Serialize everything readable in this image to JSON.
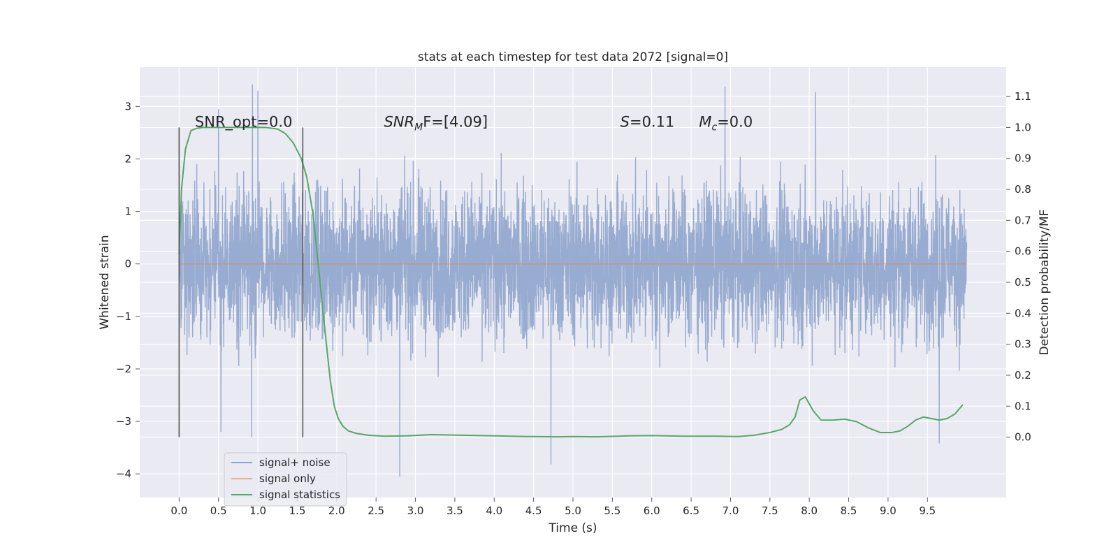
{
  "chart_data": {
    "type": "line",
    "title": "stats at each timestep for test data 2072 [signal=0]",
    "xlabel": "Time (s)",
    "ylabel_left": "Whitened strain",
    "ylabel_right": "Detection probability/MF",
    "xlim": [
      -0.5,
      10.5
    ],
    "ylim_left": [
      -4.45,
      3.75
    ],
    "ylim_right": [
      -0.195,
      1.195
    ],
    "x_ticks": [
      0.0,
      0.5,
      1.0,
      1.5,
      2.0,
      2.5,
      3.0,
      3.5,
      4.0,
      4.5,
      5.0,
      5.5,
      6.0,
      6.5,
      7.0,
      7.5,
      8.0,
      8.5,
      9.0,
      9.5
    ],
    "x_tick_labels": [
      "0.0",
      "0.5",
      "1.0",
      "1.5",
      "2.0",
      "2.5",
      "3.0",
      "3.5",
      "4.0",
      "4.5",
      "5.0",
      "5.5",
      "6.0",
      "6.5",
      "7.0",
      "7.5",
      "8.0",
      "8.5",
      "9.0",
      "9.5"
    ],
    "y_left_ticks": [
      -4,
      -3,
      -2,
      -1,
      0,
      1,
      2,
      3
    ],
    "y_left_tick_labels": [
      "−4",
      "−3",
      "−2",
      "−1",
      "0",
      "1",
      "2",
      "3"
    ],
    "y_right_ticks": [
      0.0,
      0.1,
      0.2,
      0.3,
      0.4,
      0.5,
      0.6,
      0.7,
      0.8,
      0.9,
      1.0,
      1.1
    ],
    "y_right_tick_labels": [
      "0.0",
      "0.1",
      "0.2",
      "0.3",
      "0.4",
      "0.5",
      "0.6",
      "0.7",
      "0.8",
      "0.9",
      "1.0",
      "1.1"
    ],
    "grid": true,
    "legend_position": "lower-left",
    "annotations": [
      {
        "text": "SNR_opt=0.0",
        "x": 0.2
      },
      {
        "text": "SNR",
        "sub": "M",
        "after": "F=[4.09]",
        "x": 2.6
      },
      {
        "text": "S",
        "after": "=0.11",
        "x": 5.6
      },
      {
        "text": "M",
        "sub": "c",
        "after": "=0.0",
        "x": 6.6
      }
    ],
    "vlines": [
      {
        "x": 0.0,
        "y_right_range": [
          0.0,
          1.0
        ]
      },
      {
        "x": 1.57,
        "y_right_range": [
          0.0,
          1.0
        ]
      }
    ],
    "series": [
      {
        "name": "signal+ noise",
        "axis": "left",
        "kind": "noise",
        "color": "#8fa4cc",
        "x_range": [
          0.0,
          10.0
        ],
        "typical_range": [
          -1.5,
          1.5
        ],
        "extremes": [
          {
            "x": 0.93,
            "y": 3.42
          },
          {
            "x": 1.0,
            "y": 3.3
          },
          {
            "x": 0.5,
            "y": 2.95
          },
          {
            "x": 6.93,
            "y": 3.38
          },
          {
            "x": 8.08,
            "y": 3.27
          },
          {
            "x": 2.8,
            "y": -4.05
          },
          {
            "x": 4.72,
            "y": -3.82
          },
          {
            "x": 9.65,
            "y": -3.42
          },
          {
            "x": 0.92,
            "y": -3.3
          },
          {
            "x": 0.53,
            "y": -3.2
          }
        ]
      },
      {
        "name": "signal only",
        "axis": "left",
        "kind": "line",
        "color": "#dd8452",
        "x": [
          0.0,
          10.0
        ],
        "y": [
          0.0,
          0.0
        ]
      },
      {
        "name": "signal statistics",
        "axis": "right",
        "kind": "line",
        "color": "#55a868",
        "x": [
          0.0,
          0.03,
          0.08,
          0.15,
          0.22,
          0.3,
          0.5,
          0.8,
          1.1,
          1.25,
          1.35,
          1.45,
          1.55,
          1.62,
          1.7,
          1.77,
          1.82,
          1.87,
          1.92,
          1.97,
          2.02,
          2.08,
          2.15,
          2.25,
          2.4,
          2.6,
          2.9,
          3.2,
          3.6,
          4.0,
          4.4,
          4.8,
          5.0,
          5.3,
          5.7,
          6.0,
          6.4,
          6.8,
          7.1,
          7.3,
          7.5,
          7.65,
          7.75,
          7.82,
          7.88,
          7.95,
          8.05,
          8.15,
          8.3,
          8.45,
          8.6,
          8.75,
          8.9,
          9.05,
          9.15,
          9.25,
          9.35,
          9.45,
          9.55,
          9.65,
          9.75,
          9.85,
          9.95
        ],
        "y": [
          0.59,
          0.8,
          0.93,
          0.99,
          0.997,
          1.0,
          1.0,
          1.0,
          1.0,
          0.995,
          0.98,
          0.95,
          0.9,
          0.84,
          0.72,
          0.55,
          0.42,
          0.3,
          0.18,
          0.1,
          0.06,
          0.035,
          0.02,
          0.012,
          0.006,
          0.003,
          0.004,
          0.008,
          0.006,
          0.004,
          0.002,
          0.001,
          0.002,
          0.001,
          0.004,
          0.005,
          0.003,
          0.003,
          0.002,
          0.006,
          0.015,
          0.025,
          0.04,
          0.065,
          0.12,
          0.13,
          0.085,
          0.055,
          0.055,
          0.058,
          0.05,
          0.03,
          0.015,
          0.015,
          0.02,
          0.035,
          0.055,
          0.065,
          0.06,
          0.055,
          0.06,
          0.075,
          0.105
        ]
      }
    ]
  }
}
